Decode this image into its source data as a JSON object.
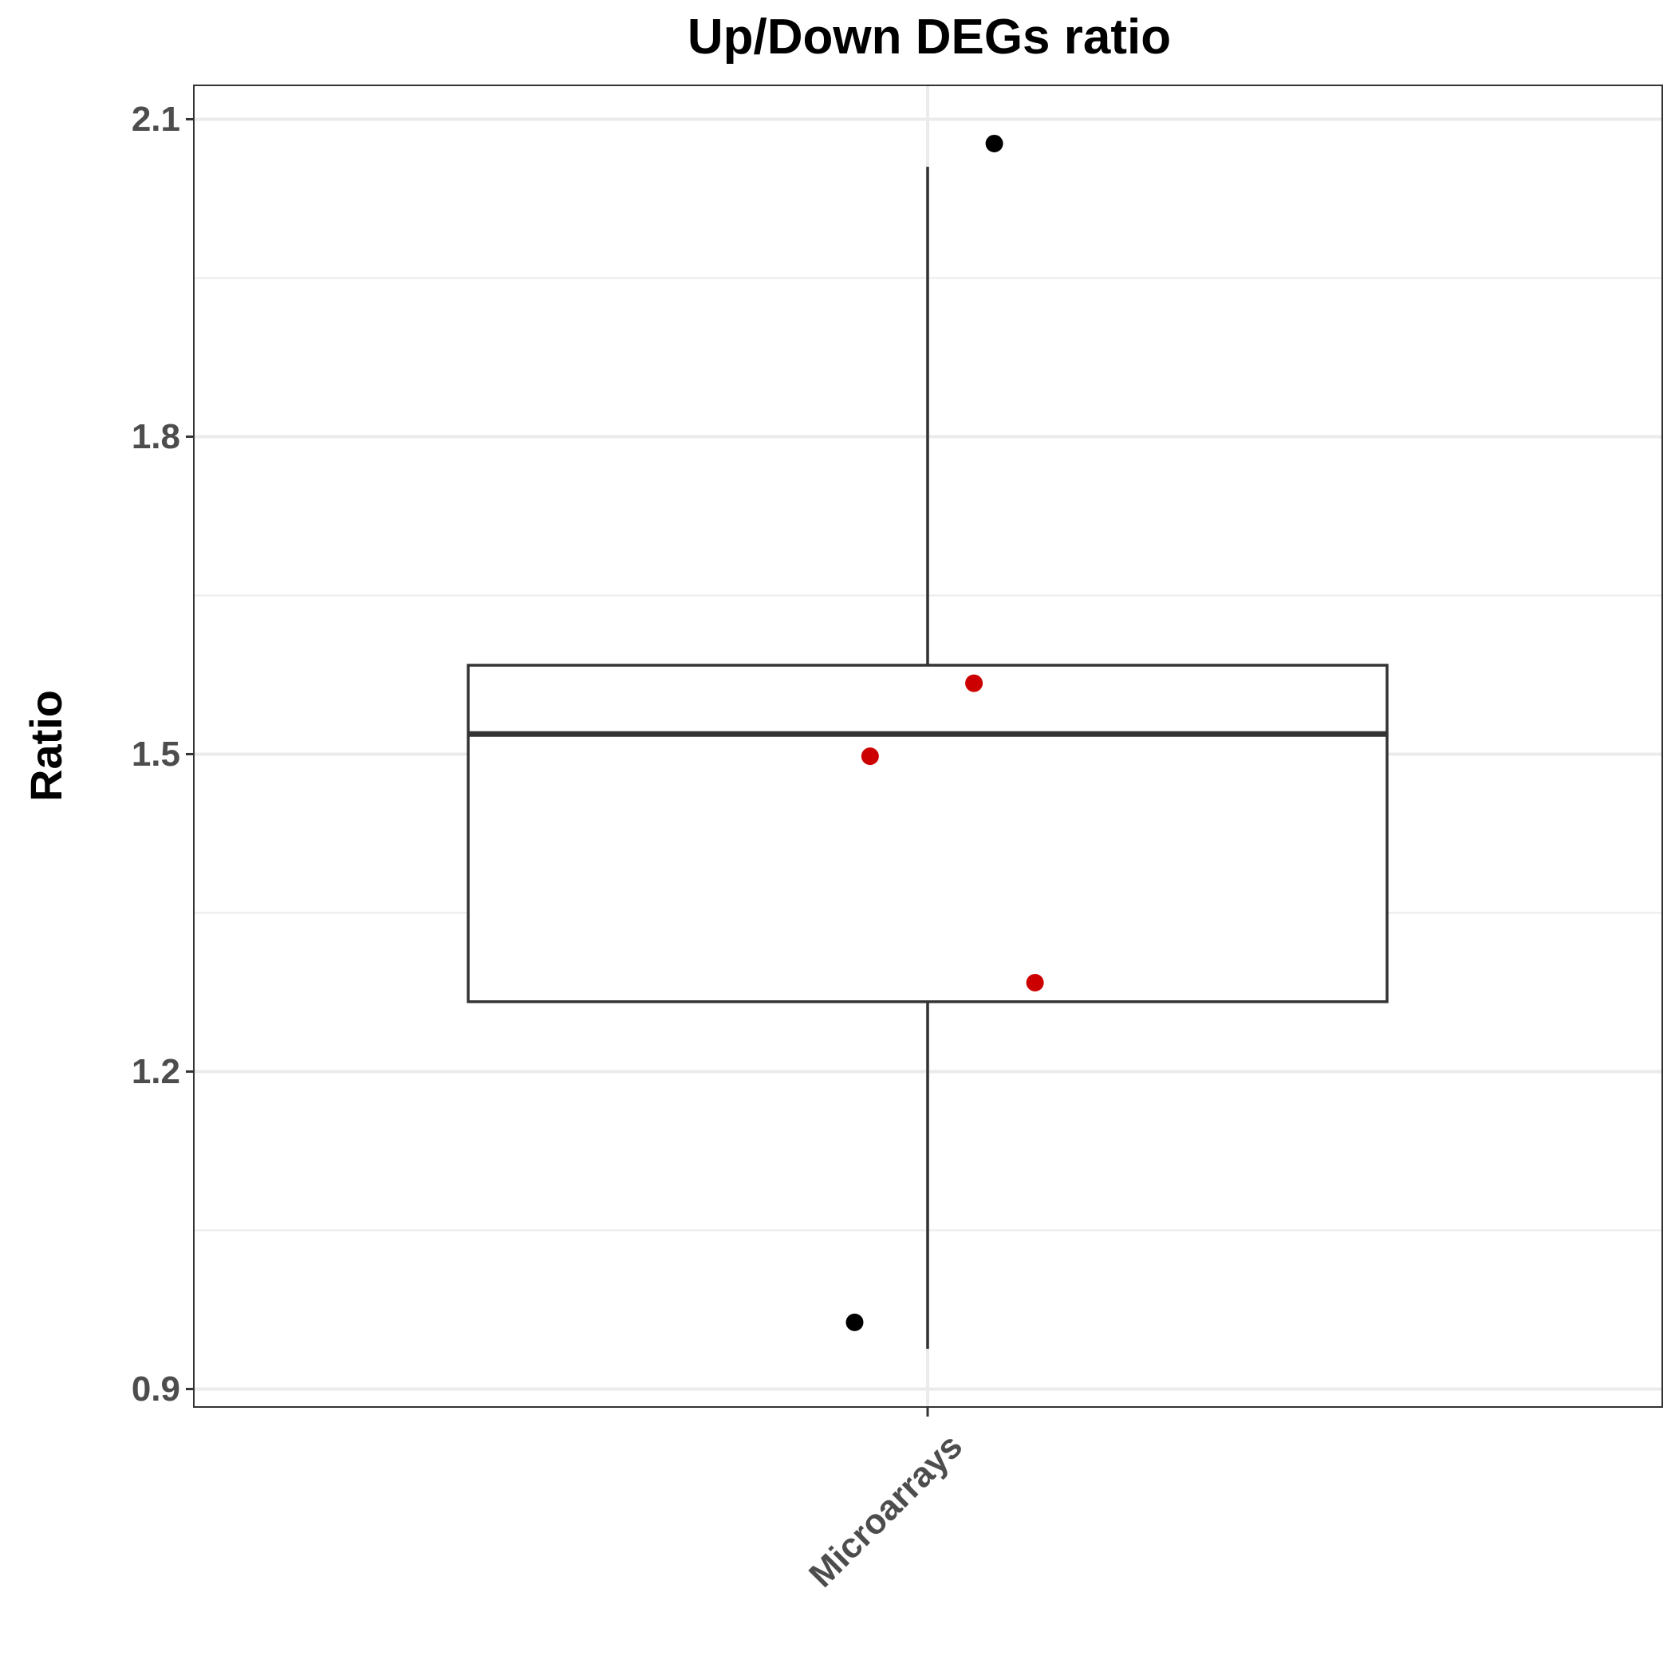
{
  "chart_data": {
    "type": "box",
    "title": "Up/Down DEGs ratio",
    "xlabel": "",
    "ylabel": "Ratio",
    "ylim": [
      0.883,
      2.132
    ],
    "yticks": [
      0.9,
      1.2,
      1.5,
      1.8,
      2.1
    ],
    "ytick_labels": [
      "0.9",
      "1.2",
      "1.5",
      "1.8",
      "2.1"
    ],
    "categories": [
      "Microarrays"
    ],
    "grid": true,
    "box": {
      "category": "Microarrays",
      "whisker_low": 0.938,
      "q1": 1.266,
      "median": 1.519,
      "q3": 1.584,
      "whisker_high": 2.055
    },
    "points": [
      {
        "y": 2.077,
        "jitter": 0.095,
        "color": "#000000"
      },
      {
        "y": 1.567,
        "jitter": 0.066,
        "color": "#cc0000"
      },
      {
        "y": 1.498,
        "jitter": -0.082,
        "color": "#cc0000"
      },
      {
        "y": 1.284,
        "jitter": 0.153,
        "color": "#cc0000"
      },
      {
        "y": 0.963,
        "jitter": -0.104,
        "color": "#000000"
      }
    ],
    "colors": {
      "outlier": "#000000",
      "highlight": "#cc0000",
      "box_line": "#333333",
      "grid": "#ebebeb"
    }
  }
}
